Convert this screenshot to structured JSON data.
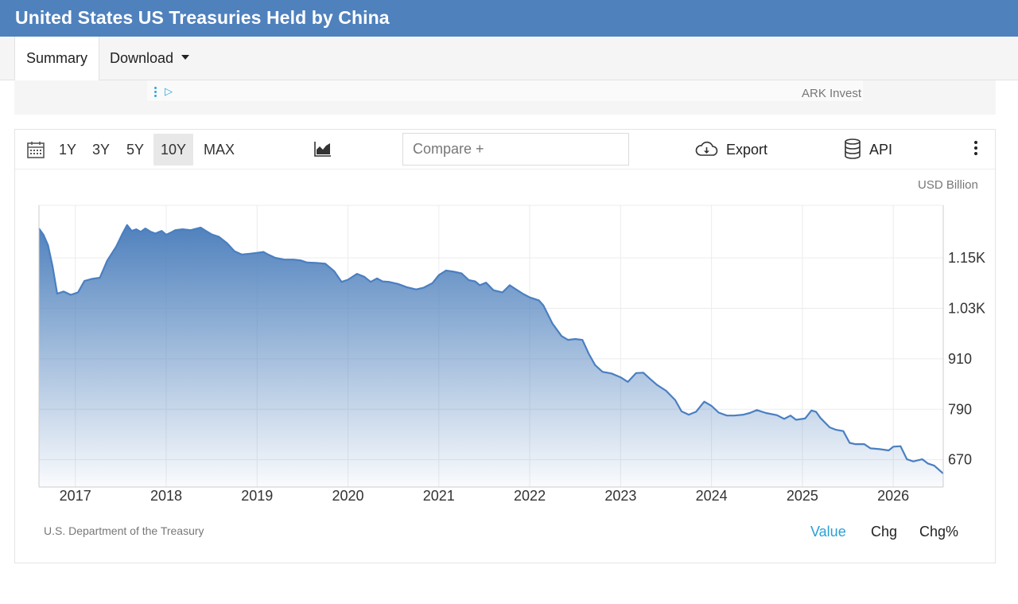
{
  "header": {
    "title": "United States US Treasuries Held by China"
  },
  "tabs": [
    {
      "label": "Summary"
    },
    {
      "label": "Download"
    }
  ],
  "ad": {
    "sponsor": "ARK Invest"
  },
  "toolbar": {
    "ranges": [
      "1Y",
      "3Y",
      "5Y",
      "10Y",
      "MAX"
    ],
    "active_range": "10Y",
    "compare_placeholder": "Compare +",
    "export_label": "Export",
    "api_label": "API"
  },
  "chart_data": {
    "type": "area",
    "unit_label": "USD Billion",
    "x_tick_labels": [
      "2017",
      "2018",
      "2019",
      "2020",
      "2021",
      "2022",
      "2023",
      "2024",
      "2025",
      "2026"
    ],
    "y_tick_labels": [
      "670",
      "790",
      "910",
      "1.03K",
      "1.15K"
    ],
    "y_ticks": [
      670,
      790,
      910,
      1030,
      1150
    ],
    "xlim": [
      2016.6,
      2026.55
    ],
    "ylim": [
      605,
      1275
    ],
    "grid": true,
    "fill_color": "#4f81bd",
    "line_color": "#4a7fc1",
    "points": [
      [
        2016.6,
        1220
      ],
      [
        2016.65,
        1205
      ],
      [
        2016.7,
        1180
      ],
      [
        2016.75,
        1130
      ],
      [
        2016.8,
        1065
      ],
      [
        2016.87,
        1070
      ],
      [
        2016.95,
        1062
      ],
      [
        2017.03,
        1068
      ],
      [
        2017.1,
        1095
      ],
      [
        2017.18,
        1100
      ],
      [
        2017.27,
        1103
      ],
      [
        2017.35,
        1143
      ],
      [
        2017.45,
        1177
      ],
      [
        2017.52,
        1208
      ],
      [
        2017.57,
        1228
      ],
      [
        2017.62,
        1214
      ],
      [
        2017.67,
        1218
      ],
      [
        2017.72,
        1212
      ],
      [
        2017.77,
        1220
      ],
      [
        2017.83,
        1212
      ],
      [
        2017.88,
        1208
      ],
      [
        2017.95,
        1214
      ],
      [
        2018.0,
        1205
      ],
      [
        2018.05,
        1210
      ],
      [
        2018.1,
        1216
      ],
      [
        2018.18,
        1218
      ],
      [
        2018.27,
        1216
      ],
      [
        2018.38,
        1222
      ],
      [
        2018.43,
        1215
      ],
      [
        2018.5,
        1206
      ],
      [
        2018.58,
        1200
      ],
      [
        2018.67,
        1185
      ],
      [
        2018.75,
        1166
      ],
      [
        2018.83,
        1158
      ],
      [
        2018.92,
        1160
      ],
      [
        2019.0,
        1162
      ],
      [
        2019.07,
        1164
      ],
      [
        2019.12,
        1158
      ],
      [
        2019.2,
        1150
      ],
      [
        2019.3,
        1146
      ],
      [
        2019.4,
        1146
      ],
      [
        2019.48,
        1144
      ],
      [
        2019.55,
        1139
      ],
      [
        2019.65,
        1138
      ],
      [
        2019.75,
        1136
      ],
      [
        2019.85,
        1118
      ],
      [
        2019.93,
        1093
      ],
      [
        2020.0,
        1098
      ],
      [
        2020.1,
        1112
      ],
      [
        2020.18,
        1105
      ],
      [
        2020.25,
        1093
      ],
      [
        2020.32,
        1101
      ],
      [
        2020.38,
        1094
      ],
      [
        2020.45,
        1093
      ],
      [
        2020.55,
        1088
      ],
      [
        2020.65,
        1080
      ],
      [
        2020.75,
        1075
      ],
      [
        2020.83,
        1079
      ],
      [
        2020.93,
        1090
      ],
      [
        2021.0,
        1109
      ],
      [
        2021.08,
        1120
      ],
      [
        2021.17,
        1117
      ],
      [
        2021.25,
        1113
      ],
      [
        2021.33,
        1097
      ],
      [
        2021.4,
        1094
      ],
      [
        2021.45,
        1085
      ],
      [
        2021.52,
        1091
      ],
      [
        2021.6,
        1073
      ],
      [
        2021.7,
        1068
      ],
      [
        2021.78,
        1085
      ],
      [
        2021.85,
        1075
      ],
      [
        2021.93,
        1064
      ],
      [
        2022.0,
        1056
      ],
      [
        2022.1,
        1049
      ],
      [
        2022.15,
        1037
      ],
      [
        2022.25,
        994
      ],
      [
        2022.35,
        964
      ],
      [
        2022.42,
        955
      ],
      [
        2022.5,
        957
      ],
      [
        2022.58,
        955
      ],
      [
        2022.65,
        922
      ],
      [
        2022.72,
        895
      ],
      [
        2022.8,
        879
      ],
      [
        2022.9,
        875
      ],
      [
        2023.0,
        866
      ],
      [
        2023.08,
        855
      ],
      [
        2023.17,
        876
      ],
      [
        2023.25,
        877
      ],
      [
        2023.32,
        863
      ],
      [
        2023.4,
        848
      ],
      [
        2023.5,
        834
      ],
      [
        2023.6,
        812
      ],
      [
        2023.67,
        785
      ],
      [
        2023.75,
        777
      ],
      [
        2023.83,
        784
      ],
      [
        2023.92,
        808
      ],
      [
        2024.0,
        798
      ],
      [
        2024.08,
        782
      ],
      [
        2024.17,
        775
      ],
      [
        2024.25,
        775
      ],
      [
        2024.35,
        777
      ],
      [
        2024.42,
        781
      ],
      [
        2024.5,
        788
      ],
      [
        2024.6,
        781
      ],
      [
        2024.72,
        776
      ],
      [
        2024.8,
        767
      ],
      [
        2024.87,
        775
      ],
      [
        2024.93,
        765
      ],
      [
        2025.03,
        768
      ],
      [
        2025.1,
        787
      ],
      [
        2025.15,
        784
      ],
      [
        2025.2,
        769
      ],
      [
        2025.3,
        747
      ],
      [
        2025.37,
        741
      ],
      [
        2025.45,
        738
      ],
      [
        2025.52,
        710
      ],
      [
        2025.58,
        707
      ],
      [
        2025.68,
        707
      ],
      [
        2025.75,
        697
      ],
      [
        2025.85,
        695
      ],
      [
        2025.95,
        692
      ],
      [
        2026.0,
        701
      ],
      [
        2026.08,
        702
      ],
      [
        2026.15,
        671
      ],
      [
        2026.22,
        666
      ],
      [
        2026.32,
        671
      ],
      [
        2026.38,
        661
      ],
      [
        2026.45,
        656
      ],
      [
        2026.55,
        637
      ]
    ]
  },
  "footer": {
    "source": "U.S. Department of the Treasury",
    "modes": [
      "Value",
      "Chg",
      "Chg%"
    ],
    "active_mode": "Value"
  }
}
